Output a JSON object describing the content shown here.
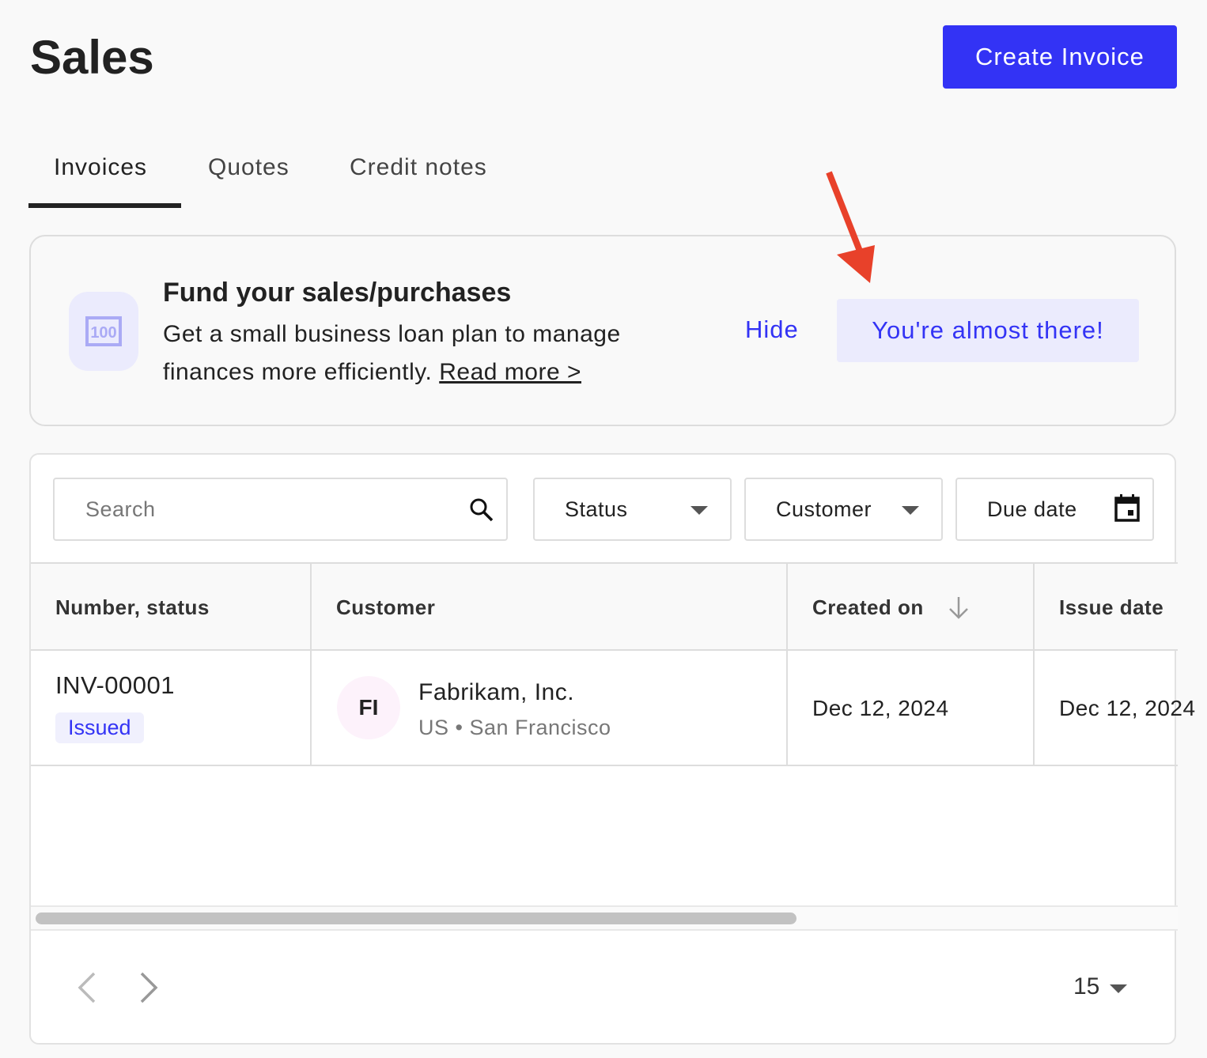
{
  "header": {
    "title": "Sales",
    "create_label": "Create Invoice"
  },
  "tabs": [
    {
      "label": "Invoices",
      "active": true
    },
    {
      "label": "Quotes"
    },
    {
      "label": "Credit notes"
    }
  ],
  "banner": {
    "icon": "money-bill-icon",
    "title": "Fund your sales/purchases",
    "text": "Get a small business loan plan to manage finances more efficiently.",
    "link": "Read more >",
    "hide_label": "Hide",
    "cta_label": "You're almost there!"
  },
  "annotation": {
    "arrow_color": "#e8412a"
  },
  "filters": {
    "search_placeholder": "Search",
    "status": "Status",
    "customer": "Customer",
    "due_date": "Due date"
  },
  "table": {
    "columns": [
      "Number, status",
      "Customer",
      "Created on",
      "Issue date"
    ],
    "rows": [
      {
        "number": "INV-00001",
        "status": "Issued",
        "initials": "FI",
        "customer": "Fabrikam, Inc.",
        "location": "US • San Francisco",
        "created_on": "Dec 12, 2024",
        "issue_date": "Dec 12, 2024"
      }
    ]
  },
  "pagination": {
    "page_size": "15"
  },
  "colors": {
    "accent": "#3333f5",
    "accent_light": "#ebebfd"
  }
}
